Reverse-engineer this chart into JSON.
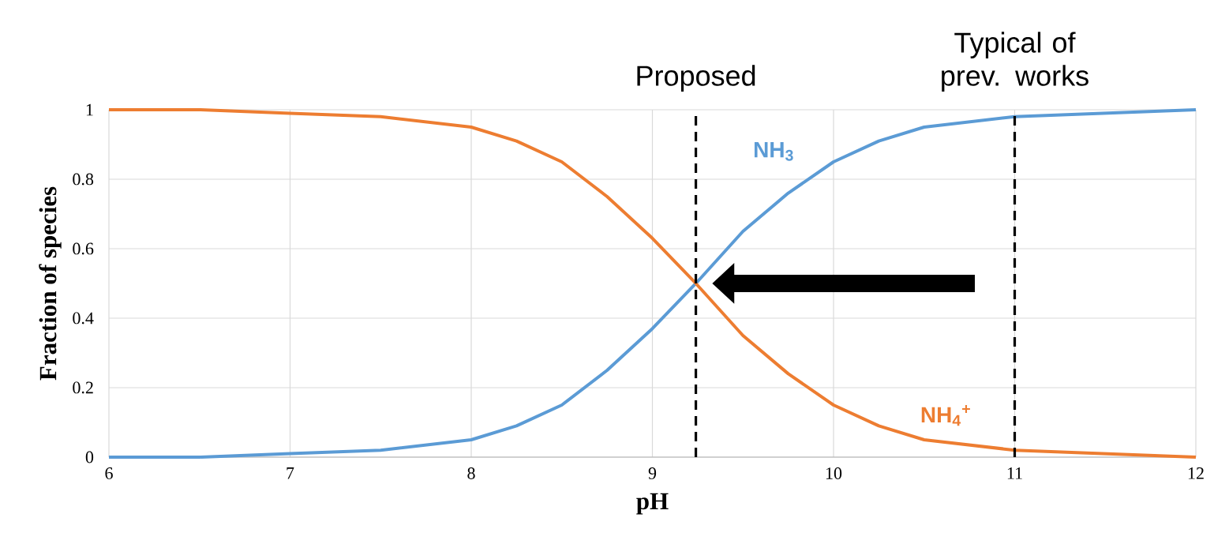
{
  "chart_data": {
    "type": "line",
    "xlabel": "pH",
    "ylabel": "Fraction of species",
    "x": [
      6,
      6.5,
      7,
      7.5,
      8,
      8.25,
      8.5,
      8.75,
      9,
      9.24,
      9.5,
      9.75,
      10,
      10.25,
      10.5,
      11,
      11.5,
      12
    ],
    "series": [
      {
        "name": "NH$_{3}$",
        "color": "#5b9bd5",
        "values": [
          0,
          0,
          0.01,
          0.02,
          0.05,
          0.09,
          0.15,
          0.25,
          0.37,
          0.5,
          0.65,
          0.76,
          0.85,
          0.91,
          0.95,
          0.98,
          0.99,
          1
        ]
      },
      {
        "name": "NH$_{4}$$^{+}$",
        "color": "#ed7d31",
        "values": [
          1,
          1,
          0.99,
          0.98,
          0.95,
          0.91,
          0.85,
          0.75,
          0.63,
          0.5,
          0.35,
          0.24,
          0.15,
          0.09,
          0.05,
          0.02,
          0.01,
          0
        ]
      }
    ],
    "xlim": [
      6,
      12
    ],
    "ylim": [
      0,
      1
    ],
    "xticks": [
      6,
      7,
      8,
      9,
      10,
      11,
      12
    ],
    "yticks": [
      0,
      0.2,
      0.4,
      0.6,
      0.8,
      1
    ],
    "grid": true,
    "ref_lines": [
      {
        "axis": "x",
        "value": 9.24,
        "label": "Proposed",
        "color": "#000000",
        "line_style": "dashed"
      },
      {
        "axis": "x",
        "value": 11,
        "label": "Typical of prev. works",
        "color": "#000000",
        "line_style": "dashed"
      }
    ]
  }
}
